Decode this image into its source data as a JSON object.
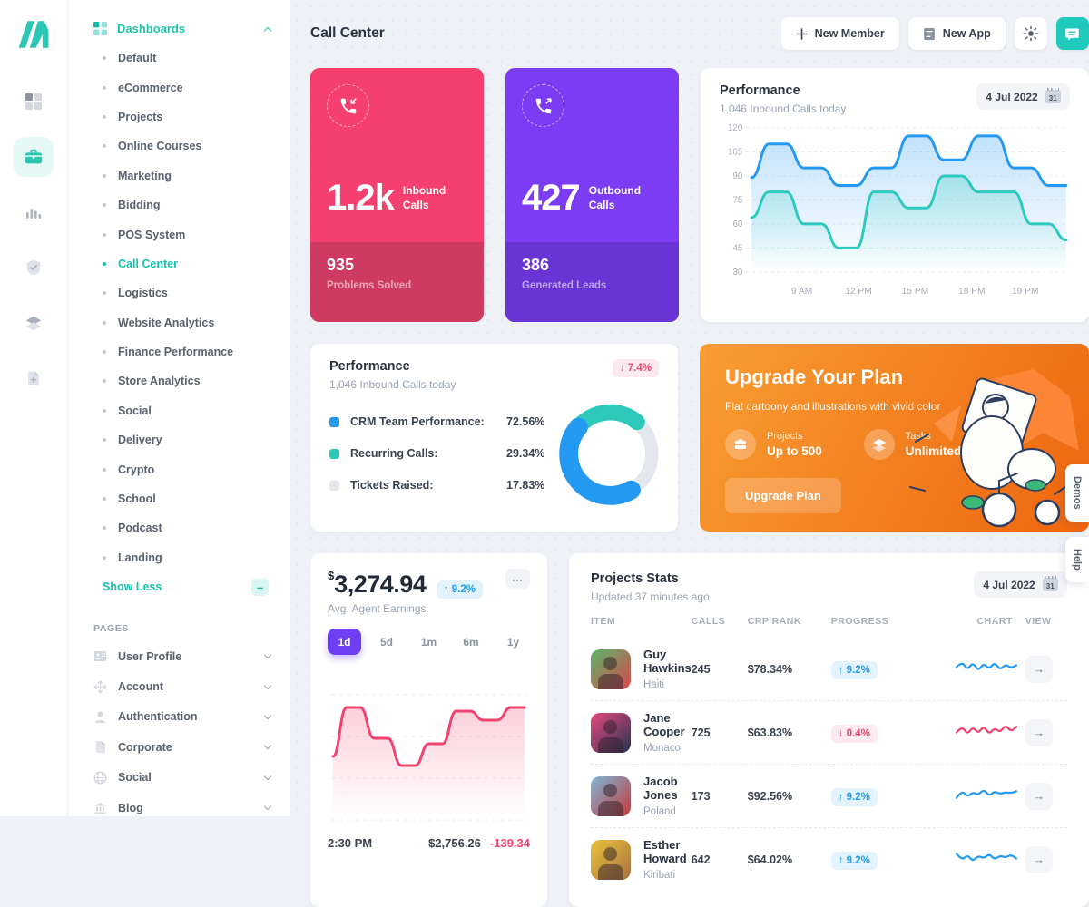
{
  "header": {
    "title": "Call Center",
    "new_member": "New Member",
    "new_app": "New App"
  },
  "side_tabs": {
    "demos": "Demos",
    "help": "Help"
  },
  "icon_rail": {
    "icons": [
      "grid",
      "briefcase",
      "bar-chart",
      "shield-check",
      "layers",
      "file-plus"
    ],
    "active": "briefcase"
  },
  "sidebar": {
    "dashboards": {
      "label": "Dashboards",
      "items": [
        {
          "label": "Default"
        },
        {
          "label": "eCommerce"
        },
        {
          "label": "Projects"
        },
        {
          "label": "Online Courses"
        },
        {
          "label": "Marketing"
        },
        {
          "label": "Bidding"
        },
        {
          "label": "POS System"
        },
        {
          "label": "Call Center",
          "active": true
        },
        {
          "label": "Logistics"
        },
        {
          "label": "Website Analytics"
        },
        {
          "label": "Finance Performance"
        },
        {
          "label": "Store Analytics"
        },
        {
          "label": "Social"
        },
        {
          "label": "Delivery"
        },
        {
          "label": "Crypto"
        },
        {
          "label": "School"
        },
        {
          "label": "Podcast"
        },
        {
          "label": "Landing"
        }
      ],
      "show_less": "Show Less"
    },
    "pages": {
      "label": "PAGES",
      "items": [
        {
          "label": "User Profile",
          "icon": "id-card"
        },
        {
          "label": "Account",
          "icon": "arrows"
        },
        {
          "label": "Authentication",
          "icon": "person"
        },
        {
          "label": "Corporate",
          "icon": "file"
        },
        {
          "label": "Social",
          "icon": "globe"
        },
        {
          "label": "Blog",
          "icon": "bank"
        }
      ]
    }
  },
  "cards": {
    "inbound": {
      "value": "1.2k",
      "label": "Inbound\nCalls",
      "footer_value": "935",
      "footer_label": "Problems Solved",
      "color": "#f5406f",
      "footer_color": "#ce3a61"
    },
    "outbound": {
      "value": "427",
      "label": "Outbound\nCalls",
      "footer_value": "386",
      "footer_label": "Generated Leads",
      "color": "#7c3cf4",
      "footer_color": "#6a33d6"
    },
    "performance_line": {
      "title": "Performance",
      "subtitle": "1,046 Inbound Calls today",
      "date": "4 Jul 2022",
      "date_day": "31"
    },
    "performance_donut": {
      "title": "Performance",
      "subtitle": "1,046 Inbound Calls today",
      "badge": "↓ 7.4%"
    },
    "upgrade": {
      "title": "Upgrade Your Plan",
      "subtitle": "Flat cartoony and illustrations with vivid color",
      "features": [
        {
          "label": "Projects",
          "value": "Up to 500",
          "icon": "box"
        },
        {
          "label": "Tasks",
          "value": "Unlimited",
          "icon": "layers"
        }
      ],
      "button": "Upgrade Plan"
    },
    "earnings": {
      "currency": "$",
      "value": "3,274.94",
      "badge": "↑ 9.2%",
      "label": "Avg. Agent Earnings",
      "tabs": [
        "1d",
        "5d",
        "1m",
        "6m",
        "1y"
      ],
      "active_tab": "1d",
      "footer_time": "2:30 PM",
      "footer_amount": "$2,756.26",
      "footer_change": "-139.34"
    },
    "projects": {
      "title": "Projects Stats",
      "subtitle": "Updated 37 minutes ago",
      "date": "4 Jul 2022",
      "date_day": "31",
      "columns": [
        "ITEM",
        "CALLS",
        "CRP RANK",
        "PROGRESS",
        "CHART",
        "VIEW"
      ],
      "rows": [
        {
          "name": "Guy Hawkins",
          "country": "Haiti",
          "calls": "245",
          "crp": "$78.34%",
          "progress": "↑ 9.2%",
          "progress_dir": "up",
          "spark": 0,
          "avatar": [
            "#5cb56a",
            "#d8474b"
          ]
        },
        {
          "name": "Jane Cooper",
          "country": "Monaco",
          "calls": "725",
          "crp": "$63.83%",
          "progress": "↓ 0.4%",
          "progress_dir": "down",
          "spark": 1,
          "avatar": [
            "#e84a7f",
            "#273350"
          ]
        },
        {
          "name": "Jacob Jones",
          "country": "Poland",
          "calls": "173",
          "crp": "$92.56%",
          "progress": "↑ 9.2%",
          "progress_dir": "up",
          "spark": 2,
          "avatar": [
            "#7fb5d8",
            "#c23b3b"
          ]
        },
        {
          "name": "Esther Howard",
          "country": "Kiribati",
          "calls": "642",
          "crp": "$64.02%",
          "progress": "↑ 9.2%",
          "progress_dir": "up",
          "spark": 3,
          "avatar": [
            "#e9c33c",
            "#a8713f"
          ]
        }
      ]
    }
  },
  "chart_data": [
    {
      "id": "performance_today",
      "type": "line",
      "title": "Performance",
      "subtitle": "1,046 Inbound Calls today",
      "x_ticks": [
        "9 AM",
        "12 PM",
        "15 PM",
        "18 PM",
        "19 PM"
      ],
      "y_ticks": [
        30,
        45,
        60,
        75,
        90,
        105,
        120
      ],
      "ylim": [
        30,
        120
      ],
      "grid": "dashed-horizontal",
      "legend_position": "none",
      "series": [
        {
          "name": "Inbound Calls",
          "color": "#2499f1",
          "values": [
            89,
            110,
            110,
            95,
            95,
            84,
            84,
            95,
            95,
            115,
            115,
            100,
            100,
            115,
            115,
            95,
            95,
            84,
            84
          ]
        },
        {
          "name": "Recurring Calls",
          "color": "#2cc9be",
          "values": [
            64,
            80,
            80,
            60,
            60,
            45,
            45,
            80,
            80,
            70,
            70,
            90,
            90,
            80,
            80,
            80,
            60,
            60,
            50
          ]
        }
      ]
    },
    {
      "id": "performance_breakdown",
      "type": "donut",
      "badge": "-7.4%",
      "segments": [
        {
          "label": "CRM Team Performance:",
          "value": 72.56,
          "display": "72.56%",
          "color": "#2499f1"
        },
        {
          "label": "Recurring Calls:",
          "value": 29.34,
          "display": "29.34%",
          "color": "#2cc9b8"
        },
        {
          "label": "Tickets Raised:",
          "value": 17.83,
          "display": "17.83%",
          "color": "#e4e8ee"
        }
      ]
    },
    {
      "id": "agent_earnings",
      "type": "area",
      "color": "#f4426e",
      "ylim": [
        20,
        70
      ],
      "grid": "dashed-horizontal",
      "values": [
        35,
        62,
        62,
        45,
        45,
        30,
        30,
        42,
        42,
        60,
        60,
        55,
        55,
        62,
        62
      ]
    },
    {
      "id": "row_sparklines",
      "type": "line",
      "series": [
        {
          "name": "Guy Hawkins",
          "color": "#2499f1",
          "values": [
            10,
            16,
            7,
            15,
            6,
            14,
            8,
            15,
            7,
            13,
            9,
            12
          ]
        },
        {
          "name": "Jane Cooper",
          "color": "#f4426e",
          "values": [
            8,
            15,
            6,
            14,
            7,
            15,
            6,
            13,
            8,
            16,
            9,
            14
          ]
        },
        {
          "name": "Jacob Jones",
          "color": "#2499f1",
          "values": [
            6,
            14,
            7,
            12,
            9,
            15,
            8,
            13,
            10,
            12,
            11,
            13
          ]
        },
        {
          "name": "Esther Howard",
          "color": "#2499f1",
          "values": [
            14,
            7,
            13,
            6,
            12,
            9,
            14,
            8,
            12,
            10,
            13,
            9
          ]
        }
      ]
    }
  ],
  "colors": {
    "accent_teal": "#1fc2ad",
    "chart_blue": "#2499f1",
    "chart_teal": "#2cc9be",
    "pink": "#f5406f",
    "purple": "#7c3cf4",
    "tab_purple": "#6e3ff3",
    "orange_start": "#f99d32",
    "orange_end": "#ee650f",
    "badge_up": "#1e9ff2",
    "badge_down": "#f0476d",
    "background": "#eef2f7"
  }
}
